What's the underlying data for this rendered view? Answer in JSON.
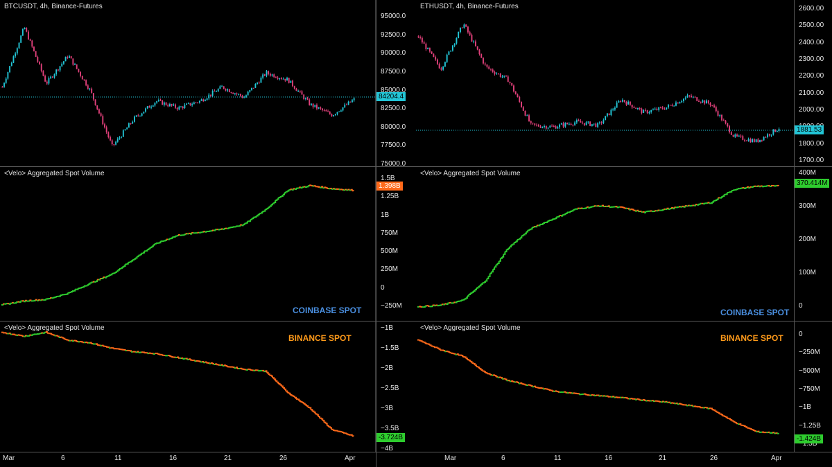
{
  "colors": {
    "up": "#22c5d6",
    "down": "#e0407a",
    "vol_up": "#2ecc2e",
    "vol_down": "#ff6a1a",
    "grid": "#5a5a5a",
    "coinbase_label": "#4a8fe0",
    "binance_label": "#ff9a1a",
    "badge_orange": "#ff6a1a",
    "badge_green": "#2ecc2e",
    "badge_cyan": "#22c5d6"
  },
  "dates": [
    "Mar",
    "6",
    "11",
    "16",
    "21",
    "26",
    "Apr"
  ],
  "left": {
    "price": {
      "title": "BTCUSDT, 4h, Binance-Futures",
      "ticks": [
        "95000.0",
        "92500.0",
        "90000.0",
        "87500.0",
        "85000.0",
        "82500.0",
        "80000.0",
        "77500.0",
        "75000.0"
      ],
      "last": "84204.4"
    },
    "coinbase": {
      "title": "<Velo> Aggregated Spot Volume",
      "label": "COINBASE SPOT",
      "ticks": [
        "1.5B",
        "1.25B",
        "1B",
        "750M",
        "500M",
        "250M",
        "0",
        "−250M"
      ],
      "last": "1.398B"
    },
    "binance": {
      "title": "<Velo> Aggregated Spot Volume",
      "label": "BINANCE SPOT",
      "ticks": [
        "−1B",
        "−1.5B",
        "−2B",
        "−2.5B",
        "−3B",
        "−3.5B",
        "−4B"
      ],
      "last": "-3.724B"
    }
  },
  "right": {
    "price": {
      "title": "ETHUSDT, 4h, Binance-Futures",
      "ticks": [
        "2600.00",
        "2500.00",
        "2400.00",
        "2300.00",
        "2200.00",
        "2100.00",
        "2000.00",
        "1900.00",
        "1800.00",
        "1700.00"
      ],
      "last": "1881.53"
    },
    "coinbase": {
      "title": "<Velo> Aggregated Spot Volume",
      "label": "COINBASE SPOT",
      "ticks": [
        "400M",
        "300M",
        "200M",
        "100M",
        "0"
      ],
      "last": "370.414M"
    },
    "binance": {
      "title": "<Velo> Aggregated Spot Volume",
      "label": "BINANCE SPOT",
      "ticks": [
        "0",
        "−250M",
        "−500M",
        "−750M",
        "−1B",
        "−1.25B",
        "−1.5B"
      ],
      "last": "-1.424B"
    }
  },
  "chart_data": [
    {
      "type": "line",
      "title": "BTCUSDT, 4h, Binance-Futures",
      "x": [
        "Mar 1",
        "Mar 3",
        "Mar 5",
        "Mar 7",
        "Mar 9",
        "Mar 11",
        "Mar 13",
        "Mar 15",
        "Mar 17",
        "Mar 19",
        "Mar 21",
        "Mar 23",
        "Mar 25",
        "Mar 27",
        "Mar 29",
        "Mar 31",
        "Apr 1"
      ],
      "series": [
        {
          "values": [
            86000,
            94500,
            86500,
            90500,
            85500,
            77500,
            81500,
            84000,
            83000,
            84000,
            86000,
            84500,
            88000,
            87000,
            83500,
            82000,
            84204
          ]
        }
      ],
      "ylim": [
        75000,
        96000
      ]
    },
    {
      "type": "line",
      "title": "ETHUSDT, 4h, Binance-Futures",
      "x": [
        "Mar 1",
        "Mar 3",
        "Mar 5",
        "Mar 7",
        "Mar 9",
        "Mar 11",
        "Mar 13",
        "Mar 15",
        "Mar 17",
        "Mar 19",
        "Mar 21",
        "Mar 23",
        "Mar 25",
        "Mar 27",
        "Mar 29",
        "Mar 31",
        "Apr 1"
      ],
      "series": [
        {
          "values": [
            2450,
            2250,
            2530,
            2260,
            2180,
            1900,
            1890,
            1920,
            1900,
            2060,
            1980,
            2010,
            2080,
            2030,
            1830,
            1800,
            1882
          ]
        }
      ],
      "ylim": [
        1680,
        2620
      ]
    },
    {
      "type": "line",
      "title": "<Velo> Aggregated Spot Volume",
      "x": [
        "Mar 1",
        "Mar 3",
        "Mar 5",
        "Mar 7",
        "Mar 9",
        "Mar 11",
        "Mar 13",
        "Mar 15",
        "Mar 17",
        "Mar 19",
        "Mar 21",
        "Mar 23",
        "Mar 25",
        "Mar 27",
        "Mar 29",
        "Mar 31",
        "Apr 1"
      ],
      "series": [
        {
          "name": "COINBASE SPOT",
          "values": [
            -100000000,
            -50000000,
            -30000000,
            50000000,
            180000000,
            300000000,
            500000000,
            700000000,
            810000000,
            850000000,
            890000000,
            950000000,
            1150000000,
            1400000000,
            1460000000,
            1420000000,
            1398000000
          ]
        }
      ],
      "ylim": [
        -300000000,
        1550000000
      ]
    },
    {
      "type": "line",
      "title": "<Velo> Aggregated Spot Volume",
      "x": [
        "Mar 1",
        "Mar 3",
        "Mar 5",
        "Mar 7",
        "Mar 9",
        "Mar 11",
        "Mar 13",
        "Mar 15",
        "Mar 17",
        "Mar 19",
        "Mar 21",
        "Mar 23",
        "Mar 25",
        "Mar 27",
        "Mar 29",
        "Mar 31",
        "Apr 1"
      ],
      "series": [
        {
          "name": "COINBASE SPOT",
          "values": [
            0,
            5000000,
            20000000,
            80000000,
            180000000,
            240000000,
            270000000,
            300000000,
            310000000,
            305000000,
            290000000,
            300000000,
            310000000,
            320000000,
            360000000,
            370000000,
            370414000
          ]
        }
      ],
      "ylim": [
        -30000000,
        410000000
      ]
    },
    {
      "type": "line",
      "title": "<Velo> Aggregated Spot Volume",
      "x": [
        "Mar 1",
        "Mar 3",
        "Mar 5",
        "Mar 7",
        "Mar 9",
        "Mar 11",
        "Mar 13",
        "Mar 15",
        "Mar 17",
        "Mar 19",
        "Mar 21",
        "Mar 23",
        "Mar 25",
        "Mar 27",
        "Mar 29",
        "Mar 31",
        "Apr 1"
      ],
      "series": [
        {
          "name": "BINANCE SPOT",
          "values": [
            -1050000000,
            -1150000000,
            -1050000000,
            -1250000000,
            -1320000000,
            -1460000000,
            -1550000000,
            -1600000000,
            -1700000000,
            -1800000000,
            -1900000000,
            -2000000000,
            -2050000000,
            -2600000000,
            -3000000000,
            -3550000000,
            -3724000000
          ]
        }
      ],
      "ylim": [
        -4050000000,
        -950000000
      ]
    },
    {
      "type": "line",
      "title": "<Velo> Aggregated Spot Volume",
      "x": [
        "Mar 1",
        "Mar 3",
        "Mar 5",
        "Mar 7",
        "Mar 9",
        "Mar 11",
        "Mar 13",
        "Mar 15",
        "Mar 17",
        "Mar 19",
        "Mar 21",
        "Mar 23",
        "Mar 25",
        "Mar 27",
        "Mar 29",
        "Mar 31",
        "Apr 1"
      ],
      "series": [
        {
          "name": "BINANCE SPOT",
          "values": [
            0,
            -150000000,
            -250000000,
            -500000000,
            -620000000,
            -700000000,
            -780000000,
            -820000000,
            -850000000,
            -880000000,
            -920000000,
            -950000000,
            -1000000000,
            -1050000000,
            -1250000000,
            -1400000000,
            -1424000000
          ]
        }
      ],
      "ylim": [
        -1600000000,
        80000000
      ]
    }
  ]
}
